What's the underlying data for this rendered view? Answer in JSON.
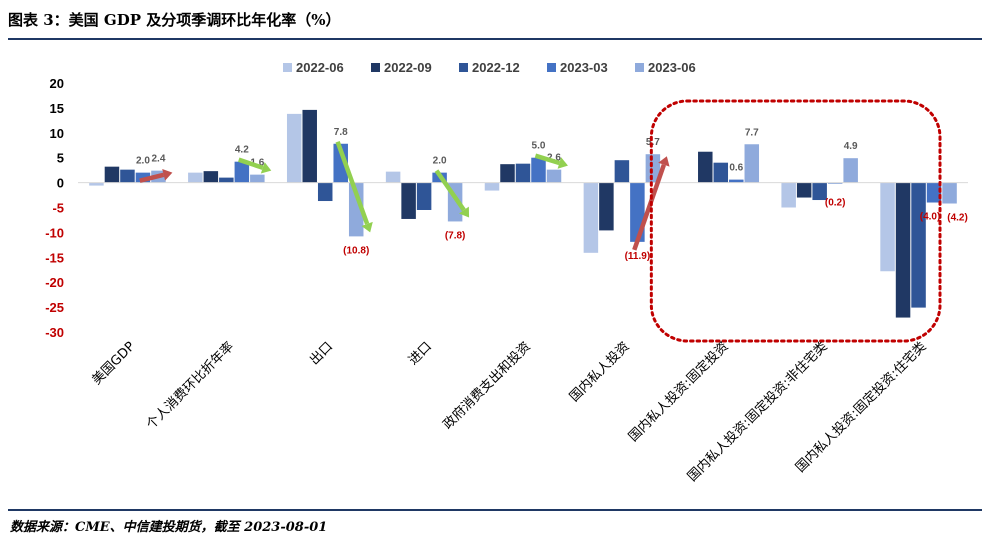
{
  "header": {
    "title": "图表 3：美国 GDP 及分项季调环比年化率（%）"
  },
  "footer": {
    "source": "数据来源：CME、中信建投期货，截至 2023-08-01"
  },
  "chart_data": {
    "type": "bar",
    "categories": [
      "美国GDP",
      "个人消费环比折年率",
      "出口",
      "进口",
      "政府消费支出和投资",
      "国内私人投资",
      "国内私人投资:固定投资",
      "国内私人投资:固定投资:非住宅类",
      "国内私人投资:固定投资:住宅类"
    ],
    "series": [
      {
        "name": "2022-06",
        "color": "#b4c6e7",
        "values": [
          -0.6,
          2.0,
          13.8,
          2.2,
          -1.6,
          -14.1,
          0.0,
          -5.0,
          -17.8
        ]
      },
      {
        "name": "2022-09",
        "color": "#203864",
        "values": [
          3.2,
          2.3,
          14.6,
          -7.3,
          3.7,
          -9.6,
          6.2,
          -3.0,
          -27.1
        ]
      },
      {
        "name": "2022-12",
        "color": "#2f5597",
        "values": [
          2.6,
          1.0,
          -3.7,
          -5.5,
          3.8,
          4.5,
          4.0,
          -3.5,
          -25.1
        ]
      },
      {
        "name": "2023-03",
        "color": "#4472c4",
        "values": [
          2.0,
          4.2,
          7.8,
          2.0,
          5.0,
          -11.9,
          0.6,
          -0.2,
          -4.0
        ]
      },
      {
        "name": "2023-06",
        "color": "#8faadc",
        "values": [
          2.4,
          1.6,
          -10.8,
          -7.8,
          2.6,
          5.7,
          7.7,
          4.9,
          -4.2
        ]
      }
    ],
    "data_labels": [
      {
        "category": 0,
        "series": 3,
        "text": "2.0",
        "red": false
      },
      {
        "category": 0,
        "series": 4,
        "text": "2.4",
        "red": false
      },
      {
        "category": 1,
        "series": 3,
        "text": "4.2",
        "red": false
      },
      {
        "category": 1,
        "series": 4,
        "text": "1.6",
        "red": false
      },
      {
        "category": 2,
        "series": 3,
        "text": "7.8",
        "red": false
      },
      {
        "category": 2,
        "series": 4,
        "text": "(10.8)",
        "red": true
      },
      {
        "category": 3,
        "series": 3,
        "text": "2.0",
        "red": false
      },
      {
        "category": 3,
        "series": 4,
        "text": "(7.8)",
        "red": true
      },
      {
        "category": 4,
        "series": 3,
        "text": "5.0",
        "red": false
      },
      {
        "category": 4,
        "series": 4,
        "text": "2.6",
        "red": false
      },
      {
        "category": 5,
        "series": 3,
        "text": "(11.9)",
        "red": true
      },
      {
        "category": 5,
        "series": 4,
        "text": "5.7",
        "red": false
      },
      {
        "category": 6,
        "series": 3,
        "text": "0.6",
        "red": false
      },
      {
        "category": 6,
        "series": 4,
        "text": "7.7",
        "red": false
      },
      {
        "category": 7,
        "series": 3,
        "text": "(0.2)",
        "red": true
      },
      {
        "category": 7,
        "series": 4,
        "text": "4.9",
        "red": false
      },
      {
        "category": 8,
        "series": 3,
        "text": "(4.0)",
        "red": true
      },
      {
        "category": 8,
        "series": 4,
        "text": "(4.2)",
        "red": true
      }
    ],
    "ylim": [
      -30,
      20
    ],
    "yticks": [
      "20",
      "15",
      "10",
      "5",
      "0",
      "-5",
      "-10",
      "-15",
      "-20",
      "-25",
      "-30"
    ],
    "tick_colors": {
      "positive": "#000000",
      "negative": "#c00000"
    },
    "trend_arrows": [
      {
        "category": 0,
        "direction": "up",
        "color": "#c0504d"
      },
      {
        "category": 1,
        "direction": "down",
        "color": "#92d050"
      },
      {
        "category": 2,
        "direction": "down",
        "color": "#92d050"
      },
      {
        "category": 3,
        "direction": "down",
        "color": "#92d050"
      },
      {
        "category": 4,
        "direction": "down",
        "color": "#92d050"
      },
      {
        "category": 5,
        "direction": "up",
        "color": "#c0504d"
      }
    ],
    "highlight_categories": [
      6,
      7,
      8
    ],
    "highlight_color": "#c00000",
    "legend_position": "top",
    "grid": false
  }
}
